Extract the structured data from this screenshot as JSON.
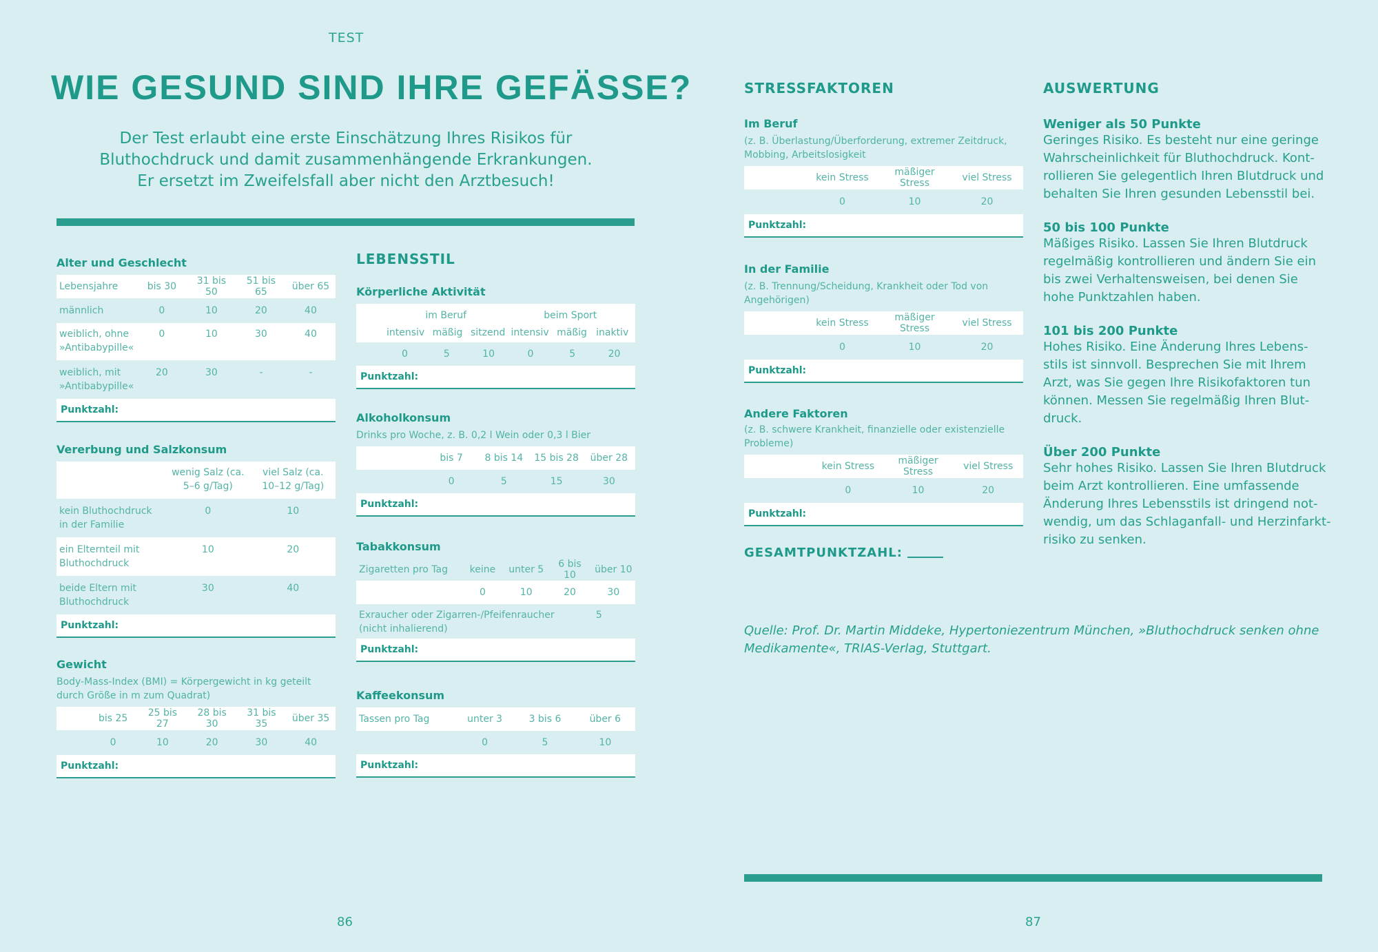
{
  "header": {
    "kicker": "TEST",
    "title": "WIE GESUND SIND IHRE GEFÄSSE?"
  },
  "intro": [
    "Der Test erlaubt eine erste Einschätzung Ihres Risikos für",
    "Bluthochdruck und damit zusammenhängende Erkrankungen.",
    "Er ersetzt im Zweifelsfall aber nicht den Arztbesuch!"
  ],
  "score_label": "Punktzahl:",
  "alter": {
    "title": "Alter und Geschlecht",
    "header": [
      "Lebensjahre",
      "bis 30",
      "31 bis 50",
      "51 bis 65",
      "über 65"
    ],
    "rows": [
      [
        "männlich",
        "0",
        "10",
        "20",
        "40"
      ],
      [
        "weiblich, ohne »Antibabypille«",
        "0",
        "10",
        "30",
        "40"
      ],
      [
        "weiblich, mit »Antibabypille«",
        "20",
        "30",
        "-",
        "-"
      ]
    ]
  },
  "vererbung": {
    "title": "Vererbung und Salzkonsum",
    "header": [
      "",
      "wenig Salz (ca. 5–6 g/Tag)",
      "viel Salz (ca. 10–12 g/Tag)"
    ],
    "rows": [
      [
        "kein Bluthochdruck in der Familie",
        "0",
        "10"
      ],
      [
        "ein Elternteil mit Bluthochdruck",
        "10",
        "20"
      ],
      [
        "beide Eltern mit Bluthochdruck",
        "30",
        "40"
      ]
    ]
  },
  "gewicht": {
    "title": "Gewicht",
    "note": "Body-Mass-Index (BMI) = Körpergewicht in kg geteilt durch Größe in m zum Quadrat)",
    "header": [
      "bis 25",
      "25 bis 27",
      "28 bis 30",
      "31 bis 35",
      "über 35"
    ],
    "values": [
      "0",
      "10",
      "20",
      "30",
      "40"
    ]
  },
  "lebensstil": {
    "title": "LEBENSSTIL",
    "aktiv": {
      "title": "Körperliche Aktivität",
      "groups": [
        "im Beruf",
        "beim Sport"
      ],
      "header": [
        "intensiv",
        "mäßig",
        "sitzend",
        "intensiv",
        "mäßig",
        "inaktiv"
      ],
      "values": [
        "0",
        "5",
        "10",
        "0",
        "5",
        "20"
      ]
    },
    "alkohol": {
      "title": "Alkoholkonsum",
      "note": "Drinks pro Woche, z. B. 0,2 l Wein oder 0,3 l Bier",
      "header": [
        "bis 7",
        "8 bis 14",
        "15 bis 28",
        "über 28"
      ],
      "values": [
        "0",
        "5",
        "15",
        "30"
      ]
    },
    "tabak": {
      "title": "Tabakkonsum",
      "label": "Zigaretten pro Tag",
      "header": [
        "keine",
        "unter 5",
        "6 bis 10",
        "über 10"
      ],
      "values": [
        "0",
        "10",
        "20",
        "30"
      ],
      "extra_label": "Exraucher oder Zigarren-/Pfeifenraucher (nicht inhalierend)",
      "extra_value": "5"
    },
    "kaffee": {
      "title": "Kaffeekonsum",
      "label": "Tassen pro Tag",
      "header": [
        "unter 3",
        "3 bis 6",
        "über 6"
      ],
      "values": [
        "0",
        "5",
        "10"
      ]
    }
  },
  "stress": {
    "title": "STRESSFAKTOREN",
    "header": [
      "kein Stress",
      "mäßiger Stress",
      "viel Stress"
    ],
    "values": [
      "0",
      "10",
      "20"
    ],
    "beruf": {
      "title": "Im Beruf",
      "note": "(z. B. Überlastung/Überforderung, extremer Zeitdruck, Mobbing, Arbeitslosigkeit"
    },
    "familie": {
      "title": "In der Familie",
      "note": "(z. B. Trennung/Scheidung, Krankheit oder Tod von Angehörigen)"
    },
    "andere": {
      "title": "Andere Faktoren",
      "note": "(z. B. schwere Krankheit, finanzielle oder existenzielle Probleme)"
    },
    "gesamt": "GESAMTPUNKTZAHL:"
  },
  "auswertung": {
    "title": "AUSWERTUNG",
    "items": [
      {
        "heading": "Weniger als 50 Punkte",
        "text": "Geringes Risiko. Es besteht nur eine geringe Wahrscheinlichkeit für Bluthochdruck. Kont-rollieren Sie gelegentlich Ihren Blutdruck und behalten Sie Ihren gesunden Lebensstil bei."
      },
      {
        "heading": "50 bis 100 Punkte",
        "text": "Mäßiges Risiko. Lassen Sie Ihren Blutdruck regelmäßig kontrollieren und ändern Sie ein bis zwei Verhaltensweisen, bei denen Sie hohe Punktzahlen haben."
      },
      {
        "heading": "101 bis 200 Punkte",
        "text": "Hohes Risiko. Eine Änderung Ihres Lebens-stils ist sinnvoll. Besprechen Sie mit Ihrem Arzt, was Sie gegen Ihre Risikofaktoren tun können. Messen Sie regelmäßig Ihren Blut-druck."
      },
      {
        "heading": "Über 200 Punkte",
        "text": "Sehr hohes Risiko. Lassen Sie Ihren Blutdruck beim Arzt kontrollieren. Eine umfassende Änderung Ihres Lebensstils ist dringend not-wendig, um das Schlaganfall- und Herzinfarkt-risiko zu senken."
      }
    ]
  },
  "source": "Quelle: Prof. Dr. Martin Middeke, Hypertoniezentrum München, »Bluthochdruck senken ohne Medikamente«, TRIAS-Verlag, Stuttgart.",
  "pages": {
    "left": "86",
    "right": "87"
  }
}
